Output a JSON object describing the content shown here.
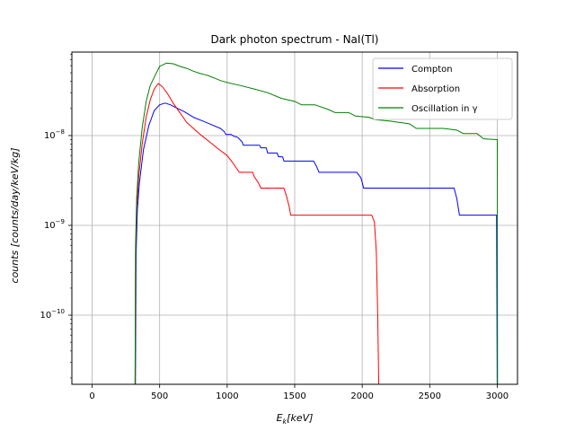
{
  "chart_data": {
    "type": "line",
    "title": "Dark photon spectrum - NaI(Tl)",
    "xlabel": "E_k[keV]",
    "ylabel": "counts [counts/day/keV/kg]",
    "xlim": [
      -150,
      3150
    ],
    "ylim": [
      1.7e-11,
      8.5e-08
    ],
    "yscale": "log",
    "grid": true,
    "legend_position": "top-right",
    "x_ticks": [
      0,
      500,
      1000,
      1500,
      2000,
      2500,
      3000
    ],
    "x_tick_labels": [
      "0",
      "500",
      "1000",
      "1500",
      "2000",
      "2500",
      "3000"
    ],
    "y_ticks": [
      1e-10,
      1e-09,
      1e-08
    ],
    "y_tick_labels": [
      {
        "base": "10",
        "exp": "−10"
      },
      {
        "base": "10",
        "exp": "−9"
      },
      {
        "base": "10",
        "exp": "−8"
      }
    ],
    "series": [
      {
        "name": "Compton",
        "color": "#0000ff",
        "points": [
          [
            320,
            1e-11
          ],
          [
            326,
            5e-10
          ],
          [
            335,
            1.5e-09
          ],
          [
            350,
            3e-09
          ],
          [
            380,
            7e-09
          ],
          [
            420,
            1.3e-08
          ],
          [
            460,
            1.9e-08
          ],
          [
            500,
            2.2e-08
          ],
          [
            540,
            2.3e-08
          ],
          [
            580,
            2.2e-08
          ],
          [
            620,
            2.05e-08
          ],
          [
            680,
            1.85e-08
          ],
          [
            750,
            1.6e-08
          ],
          [
            820,
            1.45e-08
          ],
          [
            880,
            1.33e-08
          ],
          [
            950,
            1.2e-08
          ],
          [
            980,
            1.1e-08
          ],
          [
            990,
            1.03e-08
          ],
          [
            1030,
            1.03e-08
          ],
          [
            1040,
            1e-08
          ],
          [
            1080,
            9.5e-09
          ],
          [
            1110,
            8.5e-09
          ],
          [
            1120,
            7.8e-09
          ],
          [
            1240,
            7.8e-09
          ],
          [
            1250,
            7.3e-09
          ],
          [
            1290,
            7.3e-09
          ],
          [
            1300,
            6.4e-09
          ],
          [
            1370,
            6.4e-09
          ],
          [
            1380,
            5.8e-09
          ],
          [
            1410,
            5.8e-09
          ],
          [
            1420,
            5.2e-09
          ],
          [
            1640,
            5.2e-09
          ],
          [
            1660,
            4.6e-09
          ],
          [
            1680,
            3.9e-09
          ],
          [
            1960,
            3.9e-09
          ],
          [
            1990,
            3.4e-09
          ],
          [
            2000,
            3e-09
          ],
          [
            2010,
            2.6e-09
          ],
          [
            2680,
            2.6e-09
          ],
          [
            2700,
            2e-09
          ],
          [
            2720,
            1.3e-09
          ],
          [
            2995,
            1.3e-09
          ],
          [
            3000,
            1e-11
          ]
        ]
      },
      {
        "name": "Absorption",
        "color": "#ff0000",
        "points": [
          [
            318,
            1e-11
          ],
          [
            322,
            5e-10
          ],
          [
            330,
            1.5e-09
          ],
          [
            345,
            3.5e-09
          ],
          [
            370,
            8e-09
          ],
          [
            400,
            1.6e-08
          ],
          [
            430,
            2.5e-08
          ],
          [
            460,
            3.3e-08
          ],
          [
            490,
            3.8e-08
          ],
          [
            520,
            3.5e-08
          ],
          [
            560,
            2.9e-08
          ],
          [
            600,
            2.3e-08
          ],
          [
            650,
            1.8e-08
          ],
          [
            700,
            1.4e-08
          ],
          [
            750,
            1.2e-08
          ],
          [
            800,
            1.03e-08
          ],
          [
            870,
            8.5e-09
          ],
          [
            940,
            7e-09
          ],
          [
            1000,
            6e-09
          ],
          [
            1040,
            5e-09
          ],
          [
            1070,
            4.3e-09
          ],
          [
            1090,
            3.9e-09
          ],
          [
            1190,
            3.9e-09
          ],
          [
            1200,
            3.5e-09
          ],
          [
            1230,
            3e-09
          ],
          [
            1250,
            2.6e-09
          ],
          [
            1420,
            2.6e-09
          ],
          [
            1440,
            2.1e-09
          ],
          [
            1460,
            1.6e-09
          ],
          [
            1470,
            1.3e-09
          ],
          [
            2070,
            1.3e-09
          ],
          [
            2090,
            1.1e-09
          ],
          [
            2105,
            5e-10
          ],
          [
            2115,
            1e-10
          ],
          [
            2125,
            1e-11
          ]
        ]
      },
      {
        "name": "Oscillation in γ",
        "color": "#008000",
        "points": [
          [
            318,
            1e-11
          ],
          [
            322,
            6e-10
          ],
          [
            330,
            2e-09
          ],
          [
            345,
            5e-09
          ],
          [
            370,
            1.2e-08
          ],
          [
            400,
            2.4e-08
          ],
          [
            430,
            3.6e-08
          ],
          [
            470,
            4.8e-08
          ],
          [
            500,
            5.9e-08
          ],
          [
            550,
            6.4e-08
          ],
          [
            600,
            6.3e-08
          ],
          [
            650,
            5.9e-08
          ],
          [
            700,
            5.6e-08
          ],
          [
            750,
            5.2e-08
          ],
          [
            800,
            4.9e-08
          ],
          [
            850,
            4.7e-08
          ],
          [
            900,
            4.4e-08
          ],
          [
            950,
            4.1e-08
          ],
          [
            1000,
            3.9e-08
          ],
          [
            1100,
            3.6e-08
          ],
          [
            1200,
            3.3e-08
          ],
          [
            1300,
            3e-08
          ],
          [
            1400,
            2.6e-08
          ],
          [
            1500,
            2.4e-08
          ],
          [
            1550,
            2.2e-08
          ],
          [
            1650,
            2.2e-08
          ],
          [
            1750,
            1.95e-08
          ],
          [
            1800,
            1.8e-08
          ],
          [
            1900,
            1.8e-08
          ],
          [
            1950,
            1.65e-08
          ],
          [
            2050,
            1.6e-08
          ],
          [
            2100,
            1.5e-08
          ],
          [
            2200,
            1.45e-08
          ],
          [
            2350,
            1.35e-08
          ],
          [
            2400,
            1.2e-08
          ],
          [
            2600,
            1.2e-08
          ],
          [
            2700,
            1.15e-08
          ],
          [
            2750,
            1.05e-08
          ],
          [
            2850,
            1.05e-08
          ],
          [
            2900,
            9.2e-09
          ],
          [
            3000,
            9e-09
          ],
          [
            3002,
            1e-11
          ]
        ]
      }
    ]
  }
}
